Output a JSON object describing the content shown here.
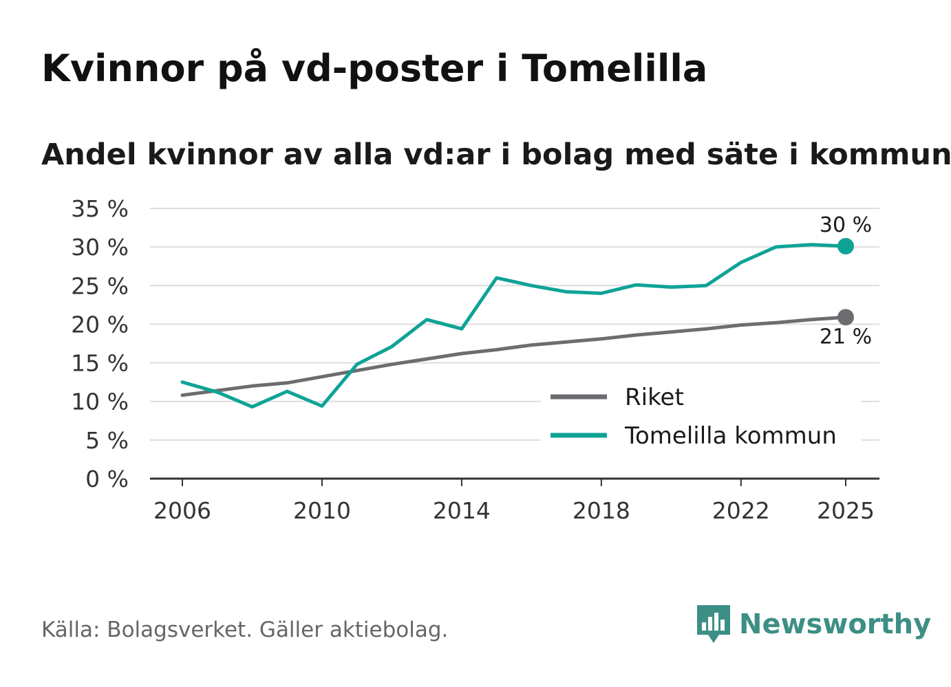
{
  "chart_data": {
    "type": "line",
    "title": "Kvinnor på vd-poster i Tomelilla",
    "subtitle": "Andel kvinnor av alla vd:ar i bolag med säte i kommunen",
    "xlabel": "",
    "ylabel": "",
    "x": [
      2006,
      2007,
      2008,
      2009,
      2010,
      2011,
      2012,
      2013,
      2014,
      2015,
      2016,
      2017,
      2018,
      2019,
      2020,
      2021,
      2022,
      2023,
      2024,
      2025
    ],
    "xticks": [
      2006,
      2010,
      2014,
      2018,
      2022,
      2025
    ],
    "xtick_labels": [
      "2006",
      "2010",
      "2014",
      "2018",
      "2022",
      "2025"
    ],
    "ylim": [
      0,
      35
    ],
    "yticks": [
      0,
      5,
      10,
      15,
      20,
      25,
      30,
      35
    ],
    "ytick_labels": [
      "0 %",
      "5 %",
      "10 %",
      "15 %",
      "20 %",
      "25 %",
      "30 %",
      "35 %"
    ],
    "grid": true,
    "legend_position": "bottom-right",
    "series": [
      {
        "name": "Riket",
        "color": "#6d6c70",
        "values": [
          10.8,
          11.4,
          12.0,
          12.4,
          13.2,
          14.0,
          14.8,
          15.5,
          16.2,
          16.7,
          17.3,
          17.7,
          18.1,
          18.6,
          19.0,
          19.4,
          19.9,
          20.2,
          20.6,
          20.9
        ],
        "end_label": "21 %"
      },
      {
        "name": "Tomelilla kommun",
        "color": "#0fa397",
        "values": [
          12.5,
          11.2,
          9.3,
          11.3,
          9.4,
          14.8,
          17.1,
          20.6,
          19.4,
          26.0,
          25.0,
          24.2,
          24.0,
          25.1,
          24.8,
          25.0,
          28.0,
          30.0,
          30.3,
          30.1
        ],
        "end_label": "30 %"
      }
    ]
  },
  "footer": {
    "source": "Källa: Bolagsverket. Gäller aktiebolag.",
    "brand": "Newsworthy"
  },
  "colors": {
    "grid": "#dddddd",
    "axis": "#333333",
    "brand": "#3d8f85"
  }
}
